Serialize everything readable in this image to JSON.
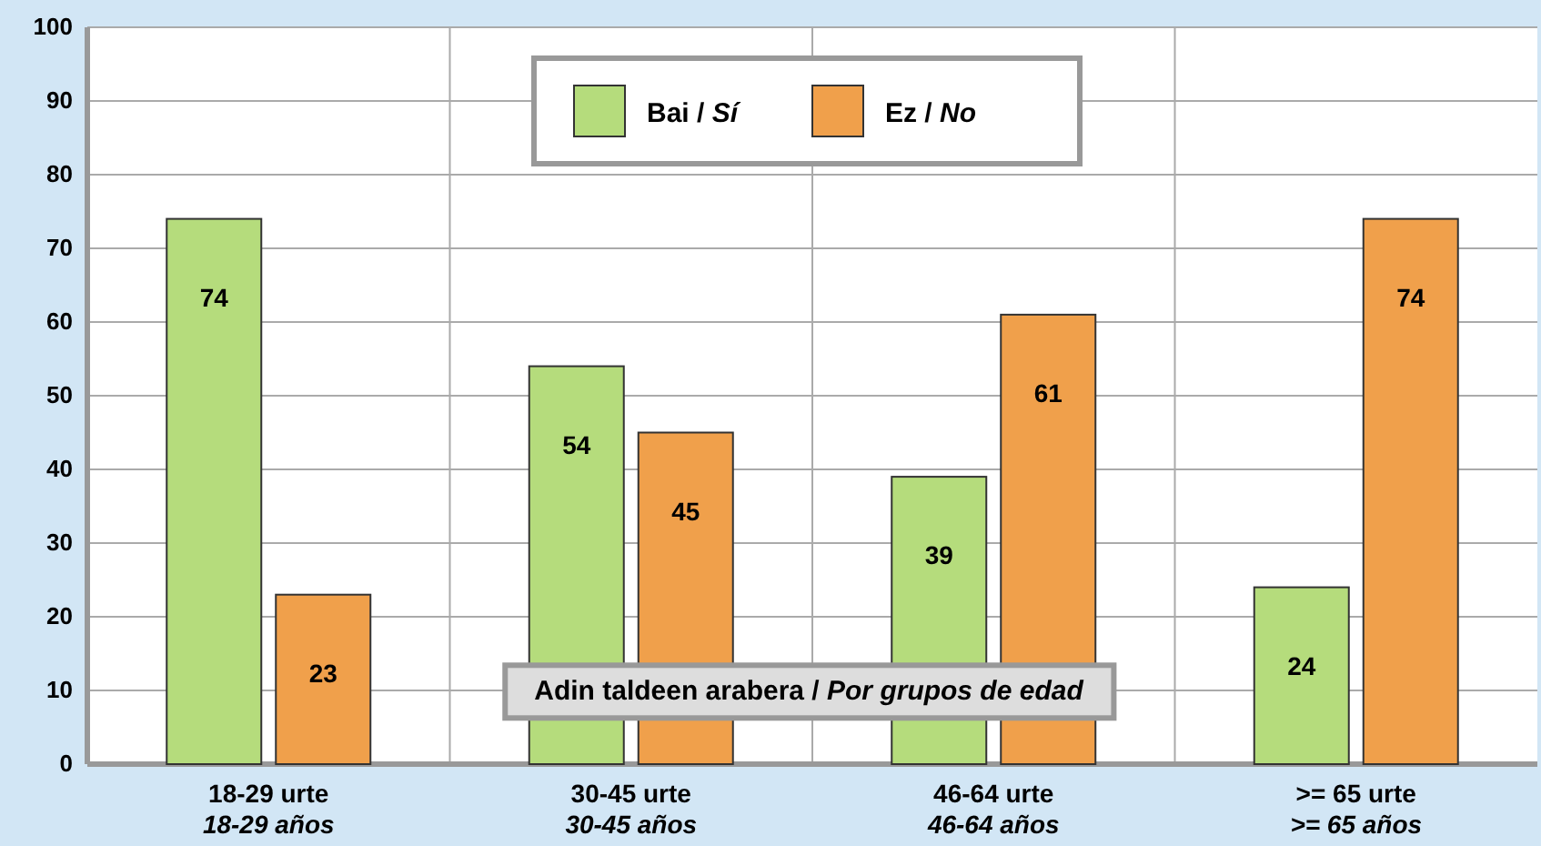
{
  "chart_data": {
    "type": "bar",
    "categories": [
      "18-29 urte\n18-29 años",
      "30-45 urte\n30-45 años",
      "46-64 urte\n46-64 años",
      ">= 65 urte\n>= 65 años"
    ],
    "series": [
      {
        "name": "Bai / Sí",
        "color": "#b5dc7c",
        "values": [
          74,
          54,
          39,
          24
        ]
      },
      {
        "name": "Ez / No",
        "color": "#f0a04b",
        "values": [
          23,
          45,
          61,
          74
        ]
      }
    ],
    "ylim": [
      0,
      100
    ],
    "yticks": [
      0,
      10,
      20,
      30,
      40,
      50,
      60,
      70,
      80,
      90,
      100
    ],
    "grid": true,
    "legend": "top",
    "data_labels": true,
    "annotations": [
      "Adin taldeen arabera / Por grupos de edad"
    ]
  }
}
